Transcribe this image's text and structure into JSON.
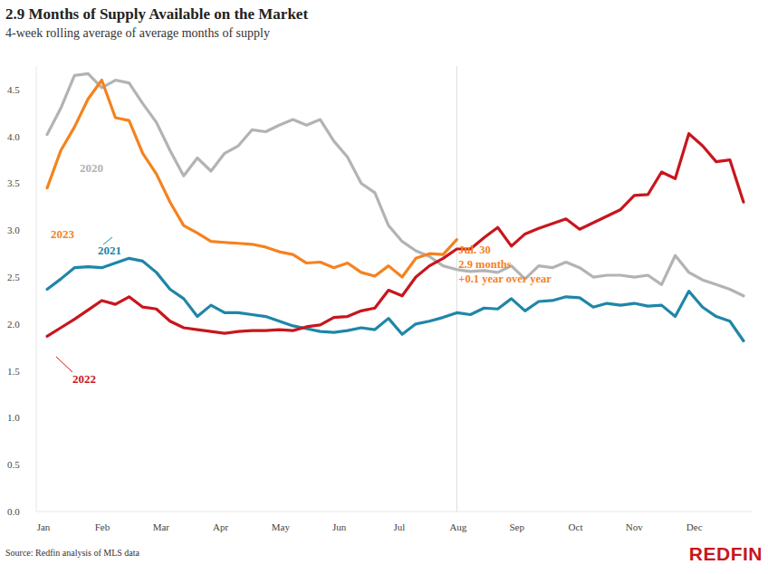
{
  "chart_data": {
    "type": "line",
    "title": "2.9 Months of Supply Available on the Market",
    "subtitle": "4-week rolling average of average months of supply",
    "source": "Source: Redfin analysis of MLS data",
    "logo": "REDFIN",
    "annotation": [
      "Jul. 30",
      "2.9 months",
      "+0.1 year over year"
    ],
    "x": [
      1,
      2,
      3,
      4,
      5,
      6,
      7,
      8,
      9,
      10,
      11,
      12,
      13,
      14,
      15,
      16,
      17,
      18,
      19,
      20,
      21,
      22,
      23,
      24,
      25,
      26,
      27,
      28,
      29,
      30,
      31,
      32,
      33,
      34,
      35,
      36,
      37,
      38,
      39,
      40,
      41,
      42,
      43,
      44,
      45,
      46,
      47,
      48,
      49,
      50,
      51,
      52
    ],
    "xlim": [
      0.2,
      52.6
    ],
    "xticks": [
      {
        "value": 0.73,
        "label": "Jan"
      },
      {
        "value": 5.04,
        "label": "Feb"
      },
      {
        "value": 9.34,
        "label": "Mar"
      },
      {
        "value": 13.7,
        "label": "Apr"
      },
      {
        "value": 18.1,
        "label": "May"
      },
      {
        "value": 22.4,
        "label": "Jun"
      },
      {
        "value": 26.8,
        "label": "Jul"
      },
      {
        "value": 31.1,
        "label": "Aug"
      },
      {
        "value": 35.4,
        "label": "Sep"
      },
      {
        "value": 39.7,
        "label": "Oct"
      },
      {
        "value": 44.0,
        "label": "Nov"
      },
      {
        "value": 48.4,
        "label": "Dec"
      }
    ],
    "ylim": [
      0,
      4.75
    ],
    "yticks": [
      {
        "value": 0,
        "label": "0.0"
      },
      0.5,
      {
        "value": 1,
        "label": "1.0"
      },
      1.5,
      {
        "value": 2,
        "label": "2.0"
      },
      2.5,
      {
        "value": 3,
        "label": "3.0"
      },
      3.5,
      {
        "value": 4,
        "label": "4.0"
      },
      4.5
    ],
    "grid": false,
    "series": [
      {
        "name": "2020",
        "color": "#b3b3b3",
        "values": [
          4.02,
          4.3,
          4.65,
          4.67,
          4.52,
          4.6,
          4.57,
          4.35,
          4.15,
          3.85,
          3.58,
          3.77,
          3.63,
          3.82,
          3.9,
          4.07,
          4.05,
          4.12,
          4.18,
          4.12,
          4.18,
          3.95,
          3.78,
          3.5,
          3.4,
          3.05,
          2.88,
          2.78,
          2.72,
          2.62,
          2.58,
          2.56,
          2.57,
          2.55,
          2.62,
          2.48,
          2.62,
          2.6,
          2.66,
          2.6,
          2.5,
          2.52,
          2.52,
          2.5,
          2.52,
          2.42,
          2.73,
          2.55,
          2.47,
          2.42,
          2.37,
          2.3
        ]
      },
      {
        "name": "2021",
        "color": "#1f86a8",
        "values": [
          2.37,
          2.48,
          2.6,
          2.61,
          2.6,
          2.65,
          2.7,
          2.67,
          2.55,
          2.37,
          2.27,
          2.08,
          2.2,
          2.12,
          2.12,
          2.1,
          2.08,
          2.03,
          1.98,
          1.95,
          1.92,
          1.91,
          1.93,
          1.96,
          1.94,
          2.06,
          1.89,
          2.0,
          2.03,
          2.07,
          2.12,
          2.1,
          2.17,
          2.16,
          2.27,
          2.14,
          2.24,
          2.25,
          2.29,
          2.28,
          2.18,
          2.22,
          2.2,
          2.22,
          2.19,
          2.2,
          2.08,
          2.35,
          2.18,
          2.08,
          2.03,
          1.82
        ]
      },
      {
        "name": "2022",
        "color": "#c8161d",
        "values": [
          1.87,
          1.96,
          2.05,
          2.15,
          2.25,
          2.21,
          2.29,
          2.18,
          2.16,
          2.03,
          1.96,
          1.94,
          1.92,
          1.9,
          1.92,
          1.93,
          1.93,
          1.94,
          1.93,
          1.97,
          1.99,
          2.07,
          2.08,
          2.14,
          2.17,
          2.36,
          2.3,
          2.5,
          2.62,
          2.7,
          2.8,
          2.8,
          2.92,
          3.03,
          2.83,
          2.96,
          3.02,
          3.07,
          3.12,
          3.01,
          3.08,
          3.15,
          3.22,
          3.37,
          3.38,
          3.62,
          3.55,
          4.03,
          3.9,
          3.73,
          3.75,
          3.3
        ]
      },
      {
        "name": "2023",
        "color": "#f5821f",
        "values": [
          3.45,
          3.85,
          4.1,
          4.4,
          4.6,
          4.2,
          4.17,
          3.82,
          3.6,
          3.3,
          3.05,
          2.97,
          2.88,
          2.87,
          2.86,
          2.85,
          2.82,
          2.77,
          2.74,
          2.65,
          2.66,
          2.6,
          2.65,
          2.55,
          2.51,
          2.62,
          2.5,
          2.7,
          2.75,
          2.74,
          2.9,
          null,
          null,
          null,
          null,
          null,
          null,
          null,
          null,
          null,
          null,
          null,
          null,
          null,
          null,
          null,
          null,
          null,
          null,
          null,
          null,
          null
        ]
      }
    ]
  }
}
